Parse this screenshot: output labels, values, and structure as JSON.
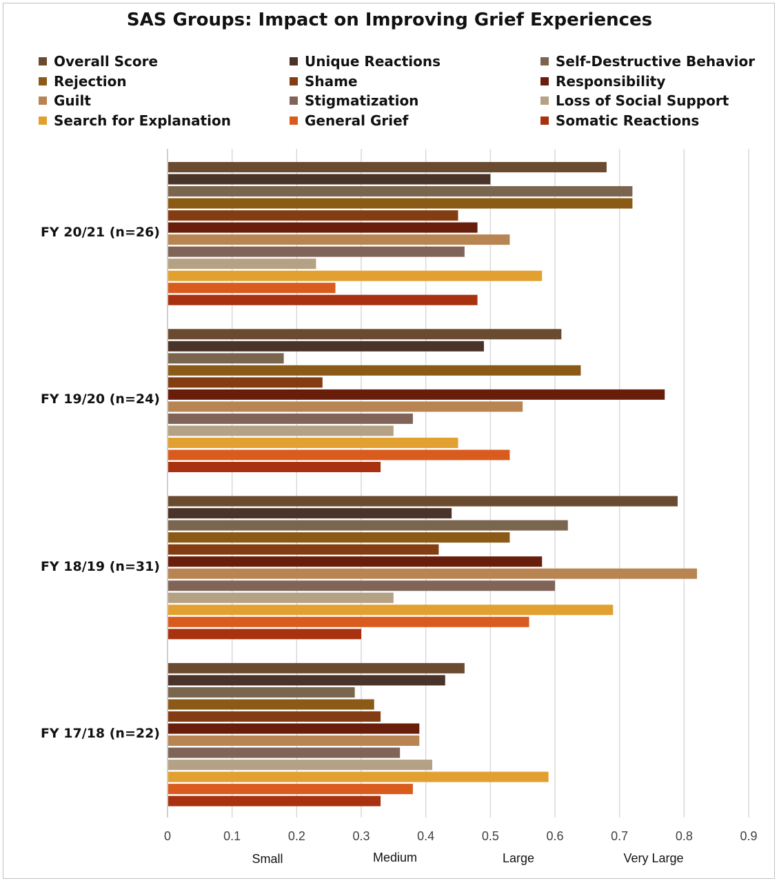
{
  "chart_data": {
    "type": "bar",
    "orientation": "horizontal",
    "title": "SAS Groups: Impact on Improving Grief Experiences",
    "categories": [
      "FY 20/21 (n=26)",
      "FY 19/20 (n=24)",
      "FY 18/19 (n=31)",
      "FY 17/18 (n=22)"
    ],
    "series": [
      {
        "name": "Overall Score",
        "color": "#6b4b30",
        "values": [
          0.68,
          0.61,
          0.79,
          0.46
        ]
      },
      {
        "name": "Unique Reactions",
        "color": "#4a3328",
        "values": [
          0.5,
          0.49,
          0.44,
          0.43
        ]
      },
      {
        "name": "Self-Destructive Behavior",
        "color": "#7a654e",
        "values": [
          0.72,
          0.18,
          0.62,
          0.29
        ]
      },
      {
        "name": "Rejection",
        "color": "#8b5a17",
        "values": [
          0.72,
          0.64,
          0.53,
          0.32
        ]
      },
      {
        "name": "Shame",
        "color": "#843c12",
        "values": [
          0.45,
          0.24,
          0.42,
          0.33
        ]
      },
      {
        "name": "Responsibility",
        "color": "#681e0b",
        "values": [
          0.48,
          0.77,
          0.58,
          0.39
        ]
      },
      {
        "name": "Guilt",
        "color": "#b88452",
        "values": [
          0.53,
          0.55,
          0.82,
          0.39
        ]
      },
      {
        "name": "Stigmatization",
        "color": "#806458",
        "values": [
          0.46,
          0.38,
          0.6,
          0.36
        ]
      },
      {
        "name": "Loss of Social Support",
        "color": "#b5a285",
        "values": [
          0.23,
          0.35,
          0.35,
          0.41
        ]
      },
      {
        "name": "Search for Explanation",
        "color": "#e1a030",
        "values": [
          0.58,
          0.45,
          0.69,
          0.59
        ]
      },
      {
        "name": "General Grief",
        "color": "#d95c1e",
        "values": [
          0.26,
          0.53,
          0.56,
          0.38
        ]
      },
      {
        "name": "Somatic Reactions",
        "color": "#a83210",
        "values": [
          0.48,
          0.33,
          0.3,
          0.33
        ]
      }
    ],
    "xlim": [
      0,
      0.9
    ],
    "xticks": [
      "0",
      "0.1",
      "0.2",
      "0.3",
      "0.4",
      "0.5",
      "0.6",
      "0.7",
      "0.8",
      "0.9"
    ],
    "effect_size_labels": [
      "Small",
      "Medium",
      "Large",
      "Very Large"
    ],
    "xlabel": "",
    "ylabel": "",
    "grid": "vertical",
    "legend_position": "top"
  }
}
